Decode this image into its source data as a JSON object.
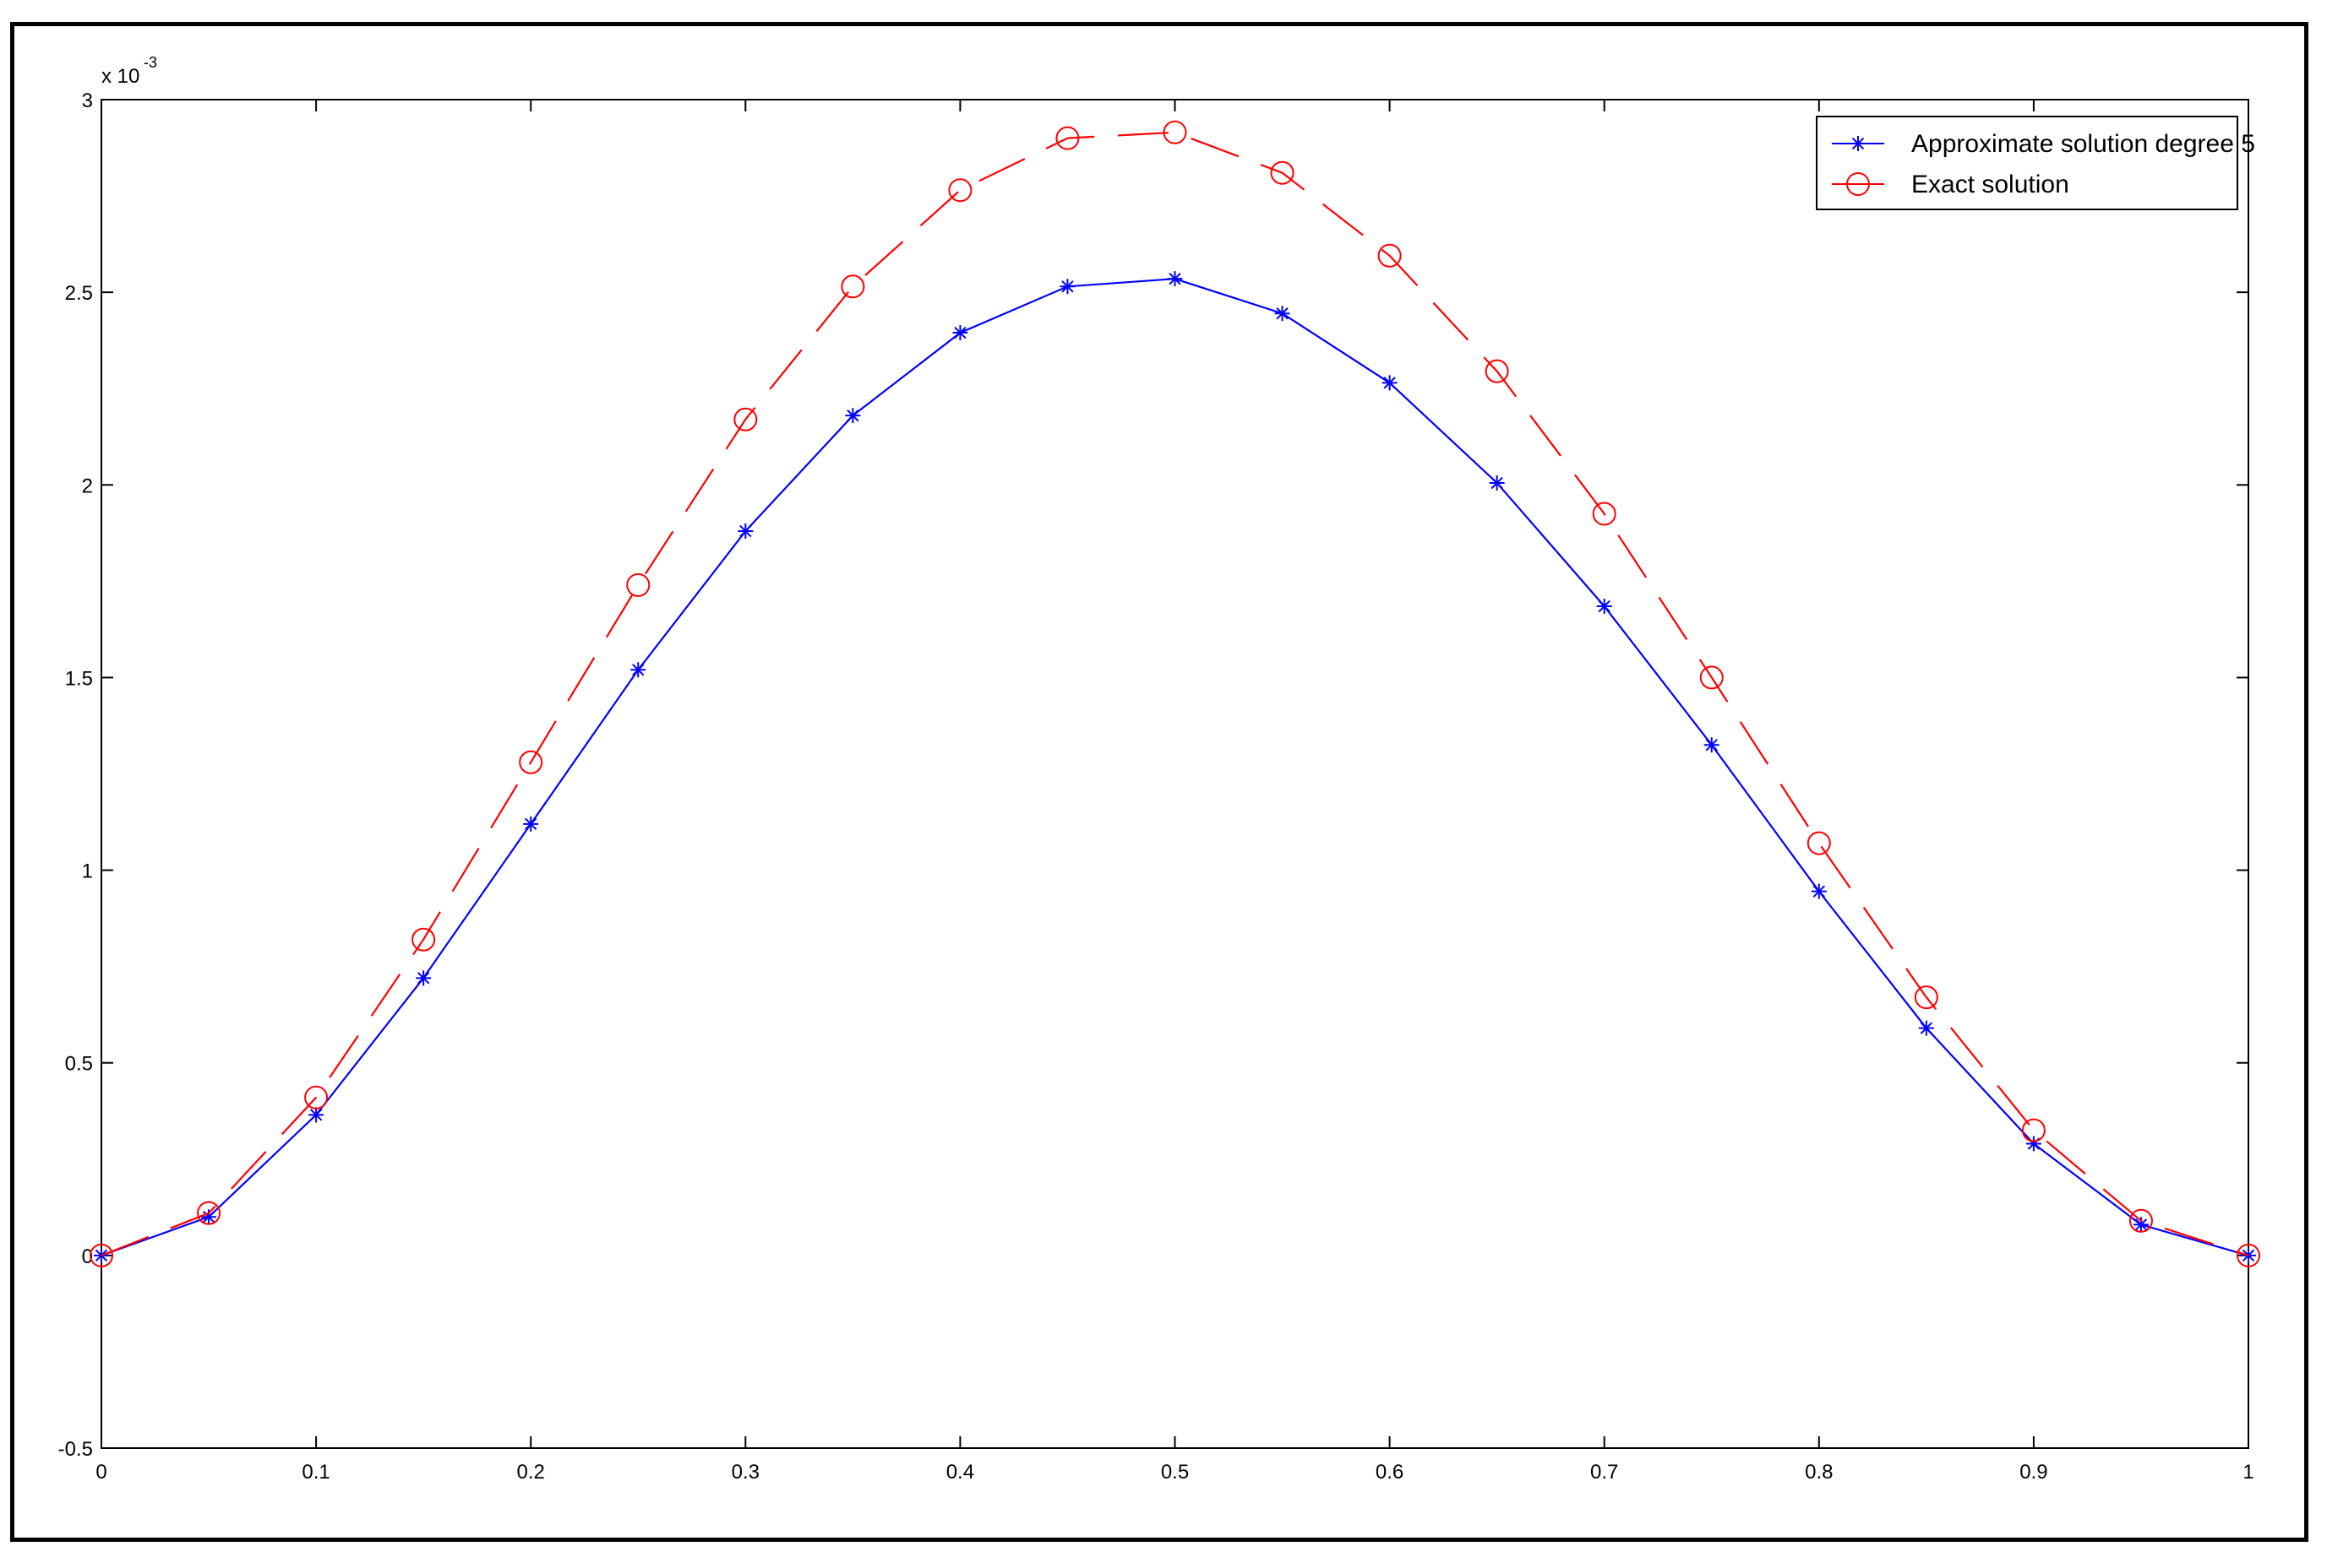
{
  "chart_data": {
    "type": "line",
    "title": "",
    "xlabel": "",
    "ylabel": "",
    "y_scale_label": {
      "base": "x 10",
      "exponent": "-3"
    },
    "xlim": [
      0,
      1
    ],
    "ylim": [
      -0.5,
      3
    ],
    "x_ticks": [
      "0",
      "0.1",
      "0.2",
      "0.3",
      "0.4",
      "0.5",
      "0.6",
      "0.7",
      "0.8",
      "0.9",
      "1"
    ],
    "y_ticks": [
      "-0.5",
      "0",
      "0.5",
      "1",
      "1.5",
      "2",
      "2.5",
      "3"
    ],
    "x": [
      0,
      0.05,
      0.1,
      0.15,
      0.2,
      0.25,
      0.3,
      0.35,
      0.4,
      0.45,
      0.5,
      0.55,
      0.6,
      0.65,
      0.7,
      0.75,
      0.8,
      0.85,
      0.9,
      0.95,
      1
    ],
    "grid": false,
    "legend_position": "top-right",
    "series": [
      {
        "name": "Approximate solution degree 5",
        "color": "#0000ff",
        "marker": "asterisk",
        "line": "solid",
        "values": [
          0,
          0.1,
          0.365,
          0.72,
          1.12,
          1.52,
          1.88,
          2.18,
          2.395,
          2.515,
          2.535,
          2.445,
          2.265,
          2.005,
          1.685,
          1.325,
          0.945,
          0.59,
          0.29,
          0.08,
          0
        ]
      },
      {
        "name": "Exact solution",
        "color": "#ff0000",
        "marker": "circle",
        "line": "dashed",
        "values": [
          0,
          0.11,
          0.41,
          0.82,
          1.28,
          1.74,
          2.17,
          2.515,
          2.765,
          2.9,
          2.915,
          2.81,
          2.595,
          2.295,
          1.925,
          1.5,
          1.07,
          0.67,
          0.325,
          0.09,
          0
        ]
      }
    ]
  }
}
